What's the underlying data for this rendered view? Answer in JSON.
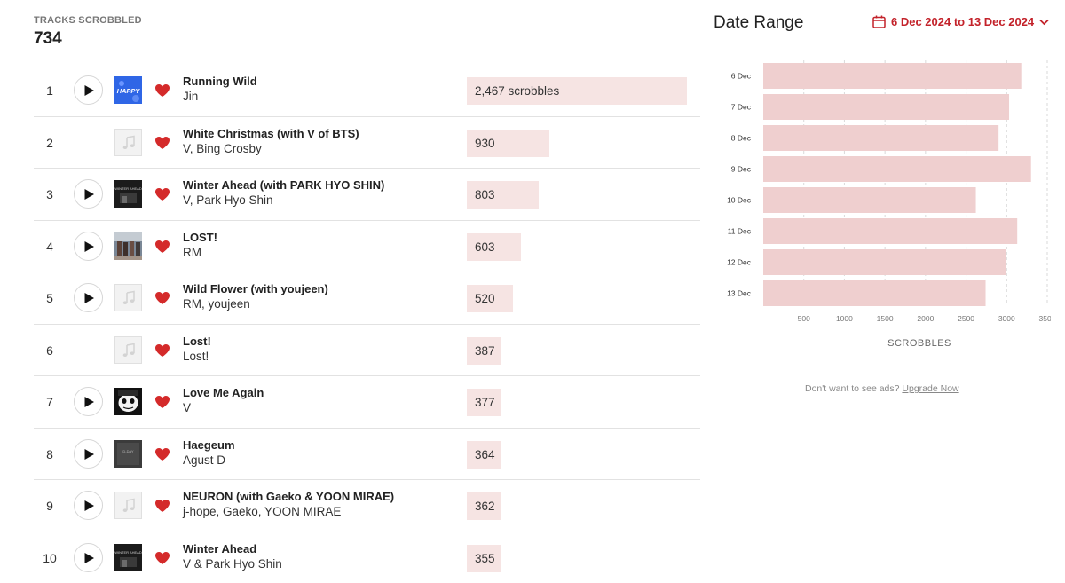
{
  "stats": {
    "label": "TRACKS SCROBBLED",
    "value": "734"
  },
  "tracks": [
    {
      "rank": "1",
      "name": "Running Wild",
      "artist": "Jin",
      "scrobbles": "2,467 scrobbles",
      "count": 2467,
      "has_play": true,
      "art": "happy"
    },
    {
      "rank": "2",
      "name": "White Christmas (with V of BTS)",
      "artist": "V, Bing Crosby",
      "scrobbles": "930",
      "count": 930,
      "has_play": false,
      "art": "placeholder"
    },
    {
      "rank": "3",
      "name": "Winter Ahead (with PARK HYO SHIN)",
      "artist": "V, Park Hyo Shin",
      "scrobbles": "803",
      "count": 803,
      "has_play": true,
      "art": "dark"
    },
    {
      "rank": "4",
      "name": "LOST!",
      "artist": "RM",
      "scrobbles": "603",
      "count": 603,
      "has_play": true,
      "art": "photo"
    },
    {
      "rank": "5",
      "name": "Wild Flower (with youjeen)",
      "artist": "RM, youjeen",
      "scrobbles": "520",
      "count": 520,
      "has_play": true,
      "art": "placeholder"
    },
    {
      "rank": "6",
      "name": "Lost!",
      "artist": "Lost!",
      "scrobbles": "387",
      "count": 387,
      "has_play": false,
      "art": "placeholder"
    },
    {
      "rank": "7",
      "name": "Love Me Again",
      "artist": "V",
      "scrobbles": "377",
      "count": 377,
      "has_play": true,
      "art": "bw"
    },
    {
      "rank": "8",
      "name": "Haegeum",
      "artist": "Agust D",
      "scrobbles": "364",
      "count": 364,
      "has_play": true,
      "art": "grey"
    },
    {
      "rank": "9",
      "name": "NEURON (with Gaeko & YOON MIRAE)",
      "artist": "j-hope, Gaeko, YOON MIRAE",
      "scrobbles": "362",
      "count": 362,
      "has_play": true,
      "art": "placeholder"
    },
    {
      "rank": "10",
      "name": "Winter Ahead",
      "artist": "V & Park Hyo Shin",
      "scrobbles": "355",
      "count": 355,
      "has_play": true,
      "art": "dark"
    }
  ],
  "date_range": {
    "title": "Date Range",
    "value": "6 Dec 2024 to 13 Dec 2024"
  },
  "chart_data": {
    "type": "bar",
    "orientation": "horizontal",
    "categories": [
      "6 Dec",
      "7 Dec",
      "8 Dec",
      "9 Dec",
      "10 Dec",
      "11 Dec",
      "12 Dec",
      "13 Dec"
    ],
    "values": [
      3180,
      3030,
      2900,
      3300,
      2620,
      3130,
      2990,
      2740
    ],
    "xticks": [
      "500",
      "1000",
      "1500",
      "2000",
      "2500",
      "3000",
      "3500"
    ],
    "xlim": [
      0,
      3500
    ],
    "xlabel": "SCROBBLES",
    "grid": true,
    "bar_color": "#efcfcf"
  },
  "ads": {
    "text": "Don't want to see ads?",
    "link": "Upgrade Now"
  },
  "colors": {
    "accent": "#c3222a",
    "bar_fill": "#f6e4e3",
    "heart": "#d42a2a"
  }
}
